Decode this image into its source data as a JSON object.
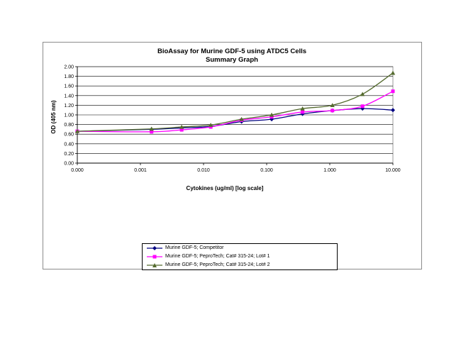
{
  "chart_data": {
    "type": "line",
    "title": "BioAssay for Murine GDF-5 using ATDC5 Cells",
    "subtitle": "Summary Graph",
    "xlabel": "Cytokines (ug/ml) [log scale]",
    "ylabel": "OD (405 nm)",
    "xscale": "log",
    "xlim": [
      0.0001,
      10
    ],
    "ylim": [
      0,
      2
    ],
    "x_tick_labels": [
      "0.000",
      "0.001",
      "0.010",
      "0.100",
      "1.000",
      "10.000"
    ],
    "y_tick_labels": [
      "0.00",
      "0.20",
      "0.40",
      "0.60",
      "0.80",
      "1.00",
      "1.20",
      "1.40",
      "1.60",
      "1.80",
      "2.00"
    ],
    "grid": "horizontal",
    "legend_position": "bottom",
    "series": [
      {
        "name": "Murine GDF-5; Competitor",
        "color": "#000080",
        "marker": "diamond",
        "x": [
          0.0001,
          0.0015,
          0.0045,
          0.013,
          0.04,
          0.12,
          0.37,
          1.1,
          3.3,
          10
        ],
        "y": [
          0.66,
          0.7,
          0.73,
          0.76,
          0.86,
          0.91,
          1.02,
          1.09,
          1.13,
          1.1
        ]
      },
      {
        "name": "Murine GDF-5; PeproTech; Cat# 315-24; Lot# 1",
        "color": "#ff00ff",
        "marker": "square",
        "x": [
          0.0001,
          0.0015,
          0.0045,
          0.013,
          0.04,
          0.12,
          0.37,
          1.1,
          3.3,
          10
        ],
        "y": [
          0.66,
          0.65,
          0.69,
          0.75,
          0.89,
          0.96,
          1.06,
          1.09,
          1.18,
          1.49
        ]
      },
      {
        "name": "Murine GDF-5; PeproTech; Cat# 315-24; Lot# 2",
        "color": "#556b2f",
        "marker": "triangle",
        "x": [
          0.0001,
          0.0015,
          0.0045,
          0.013,
          0.04,
          0.12,
          0.37,
          1.1,
          3.3,
          10
        ],
        "y": [
          0.66,
          0.71,
          0.75,
          0.79,
          0.91,
          1.0,
          1.13,
          1.2,
          1.43,
          1.87
        ]
      }
    ]
  }
}
